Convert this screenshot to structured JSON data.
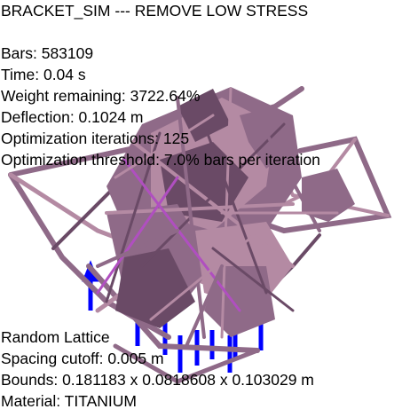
{
  "app": {
    "title": "BRACKET_SIM --- REMOVE LOW STRESS"
  },
  "stats": {
    "bars": "Bars: 583109",
    "time": "Time: 0.04 s",
    "weight": "Weight remaining: 3722.64%",
    "deflection": "Deflection: 0.1024 m",
    "iterations": "Optimization iterations: 125",
    "threshold": "Optimization threshold: 7.0% bars per iteration"
  },
  "footer": {
    "lattice": "Random Lattice",
    "spacing": "Spacing cutoff: 0.005 m",
    "bounds": "Bounds: 0.181183 x 0.0818608 x 0.103029 m",
    "material": "Material: TITANIUM"
  },
  "colors": {
    "background": "#ffffff",
    "bar_shade_light": "#b48aa3",
    "bar_shade_mid": "#8f6a88",
    "bar_shade_dark": "#6a4a66",
    "bar_highlight": "#b04fc0",
    "support_blue": "#0000ff"
  }
}
